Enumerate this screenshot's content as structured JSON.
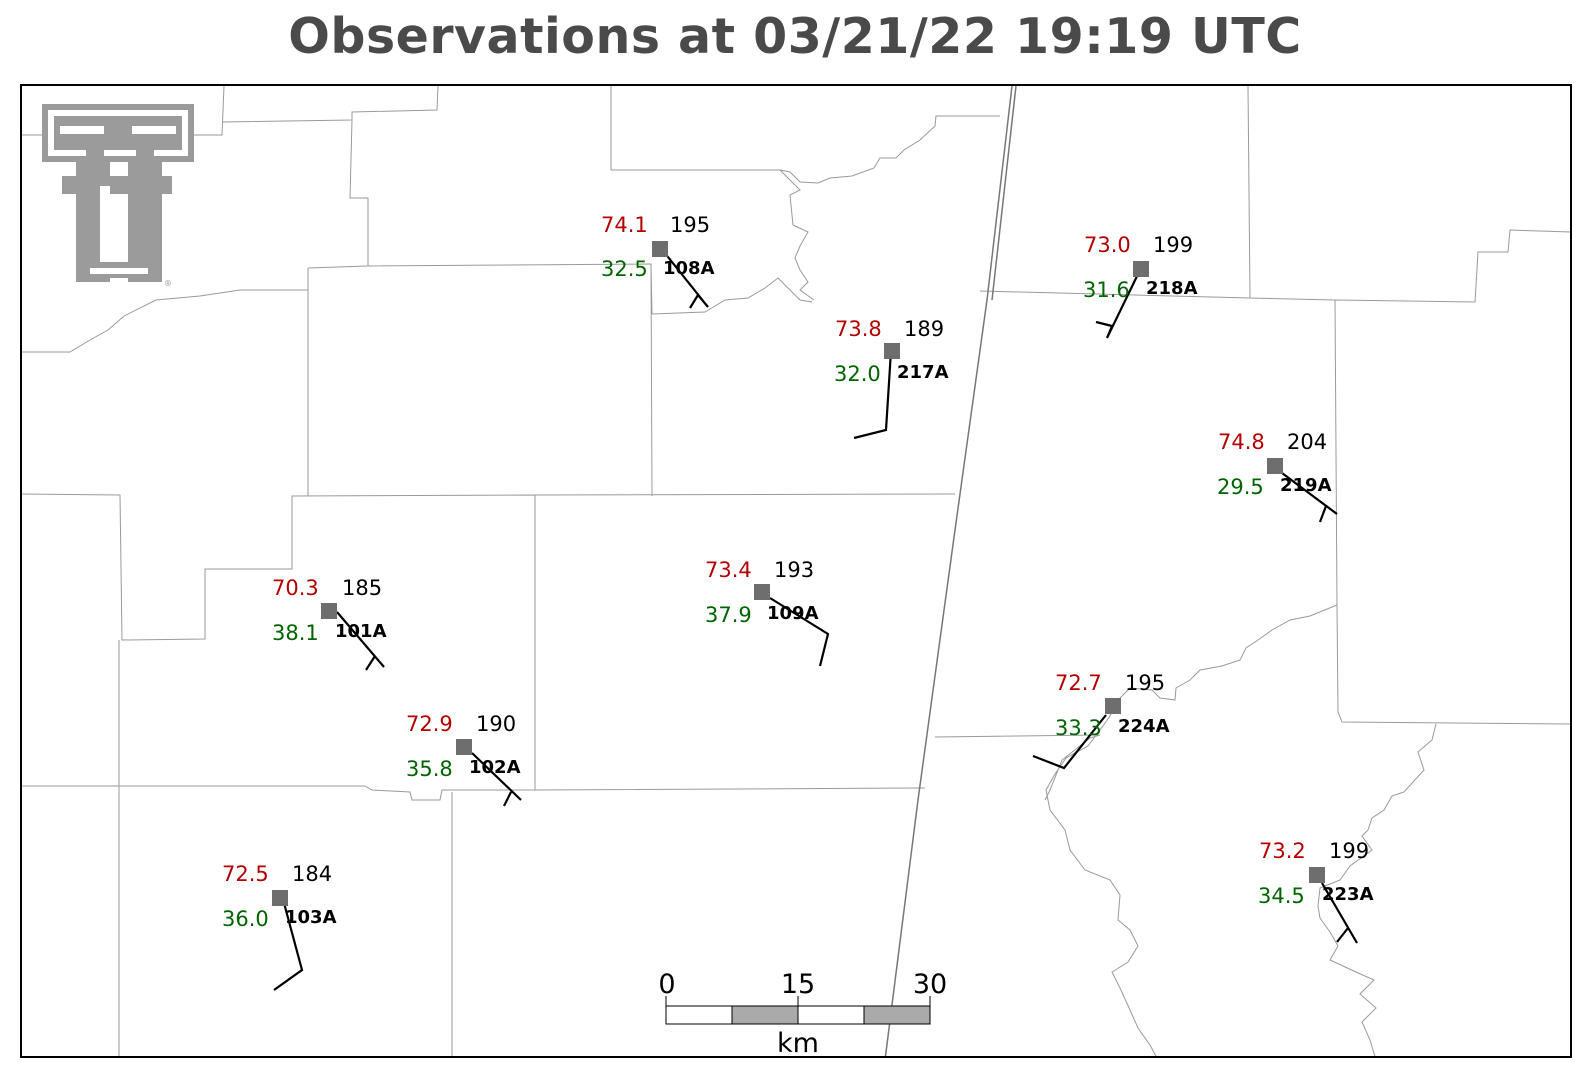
{
  "title": "Observations at 03/21/22 19:19 UTC",
  "colors": {
    "temperature": "#b40000",
    "dewpoint": "#006400",
    "pressure": "#000000",
    "station_marker": "#6e6e6e",
    "title": "#4a4a4a",
    "logo": "#9b9b9b"
  },
  "logo": {
    "name": "double-t-logo",
    "registered_mark": "®"
  },
  "stations": [
    {
      "id": "108A",
      "temp": "74.1",
      "dew": "32.5",
      "pressure": "195"
    },
    {
      "id": "217A",
      "temp": "73.8",
      "dew": "32.0",
      "pressure": "189"
    },
    {
      "id": "218A",
      "temp": "73.0",
      "dew": "31.6",
      "pressure": "199"
    },
    {
      "id": "219A",
      "temp": "74.8",
      "dew": "29.5",
      "pressure": "204"
    },
    {
      "id": "101A",
      "temp": "70.3",
      "dew": "38.1",
      "pressure": "185"
    },
    {
      "id": "109A",
      "temp": "73.4",
      "dew": "37.9",
      "pressure": "193"
    },
    {
      "id": "102A",
      "temp": "72.9",
      "dew": "35.8",
      "pressure": "190"
    },
    {
      "id": "224A",
      "temp": "72.7",
      "dew": "33.3",
      "pressure": "195"
    },
    {
      "id": "103A",
      "temp": "72.5",
      "dew": "36.0",
      "pressure": "184"
    },
    {
      "id": "223A",
      "temp": "73.2",
      "dew": "34.5",
      "pressure": "199"
    }
  ],
  "scale_bar": {
    "ticks": [
      "0",
      "15",
      "30"
    ],
    "unit": "km"
  }
}
